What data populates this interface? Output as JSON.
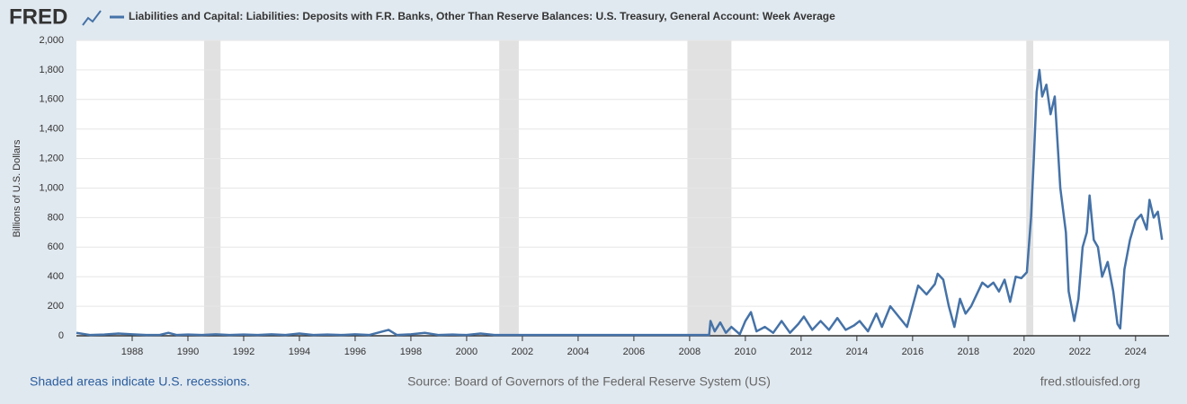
{
  "logo": "FRED",
  "chart_data": {
    "type": "line",
    "title": "Liabilities and Capital: Liabilities: Deposits with F.R. Banks, Other Than Reserve Balances: U.S. Treasury, General Account: Week Average",
    "y_label": "Billions of U.S. Dollars",
    "footer_left": "Shaded areas indicate U.S. recessions.",
    "footer_center": "Source: Board of Governors of the Federal Reserve System (US)",
    "footer_right": "fred.stlouisfed.org",
    "xlim": [
      1986,
      2025.2
    ],
    "xticks": [
      1988,
      1990,
      1992,
      1994,
      1996,
      1998,
      2000,
      2002,
      2004,
      2006,
      2008,
      2010,
      2012,
      2014,
      2016,
      2018,
      2020,
      2022,
      2024
    ],
    "ylim": [
      0,
      2000
    ],
    "yticks": [
      0,
      200,
      400,
      600,
      800,
      {
        "value": 1000,
        "label": "1,000"
      },
      {
        "value": 1200,
        "label": "1,200"
      },
      {
        "value": 1400,
        "label": "1,400"
      },
      {
        "value": 1600,
        "label": "1,600"
      },
      {
        "value": 1800,
        "label": "1,800"
      },
      {
        "value": 2000,
        "label": "2,000"
      }
    ],
    "grid": true,
    "recessions": [
      [
        1990.58,
        1991.17
      ],
      [
        2001.17,
        2001.87
      ],
      [
        2007.92,
        2009.5
      ],
      [
        2020.08,
        2020.33
      ]
    ],
    "series": [
      {
        "name": "Liabilities and Capital: Liabilities: Deposits with F.R. Banks, Other Than Reserve Balances: U.S. Treasury, General Account: Week Average",
        "color": "#4572a7",
        "x": [
          1986.0,
          1986.5,
          1987,
          1987.5,
          1988,
          1988.5,
          1989,
          1989.3,
          1989.6,
          1990,
          1990.5,
          1991,
          1991.5,
          1992,
          1992.5,
          1993,
          1993.5,
          1994,
          1994.5,
          1995,
          1995.5,
          1996,
          1996.5,
          1997.2,
          1997.5,
          1998,
          1998.5,
          1999,
          1999.5,
          2000,
          2000.5,
          2001,
          2002,
          2003,
          2004,
          2005,
          2006,
          2007,
          2007.5,
          2008.0,
          2008.7,
          2008.75,
          2008.9,
          2009.1,
          2009.3,
          2009.5,
          2009.8,
          2010,
          2010.2,
          2010.4,
          2010.7,
          2011,
          2011.3,
          2011.6,
          2011.9,
          2012.1,
          2012.4,
          2012.7,
          2013,
          2013.3,
          2013.6,
          2013.9,
          2014.1,
          2014.4,
          2014.7,
          2014.9,
          2015.2,
          2015.5,
          2015.8,
          2016.0,
          2016.2,
          2016.5,
          2016.8,
          2016.9,
          2017.1,
          2017.3,
          2017.5,
          2017.7,
          2017.9,
          2018.1,
          2018.3,
          2018.5,
          2018.7,
          2018.9,
          2019.1,
          2019.3,
          2019.5,
          2019.7,
          2019.9,
          2020.1,
          2020.25,
          2020.35,
          2020.45,
          2020.55,
          2020.65,
          2020.8,
          2020.95,
          2021.1,
          2021.3,
          2021.5,
          2021.6,
          2021.8,
          2021.95,
          2022.1,
          2022.25,
          2022.35,
          2022.5,
          2022.65,
          2022.8,
          2023.0,
          2023.2,
          2023.35,
          2023.45,
          2023.6,
          2023.8,
          2024.0,
          2024.2,
          2024.4,
          2024.5,
          2024.65,
          2024.8,
          2024.95
        ],
        "values": [
          20,
          5,
          8,
          15,
          10,
          5,
          6,
          20,
          5,
          8,
          5,
          10,
          5,
          8,
          5,
          10,
          5,
          15,
          5,
          8,
          5,
          10,
          5,
          40,
          5,
          10,
          20,
          5,
          8,
          5,
          15,
          5,
          5,
          5,
          5,
          5,
          5,
          5,
          5,
          5,
          5,
          100,
          30,
          90,
          20,
          60,
          10,
          100,
          160,
          30,
          60,
          20,
          100,
          20,
          80,
          130,
          40,
          100,
          40,
          120,
          40,
          70,
          100,
          30,
          150,
          60,
          200,
          130,
          60,
          200,
          340,
          280,
          350,
          420,
          380,
          200,
          60,
          250,
          150,
          200,
          280,
          360,
          330,
          360,
          300,
          380,
          230,
          400,
          390,
          430,
          800,
          1200,
          1650,
          1800,
          1620,
          1700,
          1500,
          1620,
          1000,
          700,
          300,
          100,
          250,
          600,
          700,
          950,
          650,
          600,
          400,
          500,
          300,
          80,
          50,
          450,
          650,
          780,
          820,
          720,
          920,
          800,
          840,
          650
        ]
      }
    ]
  }
}
